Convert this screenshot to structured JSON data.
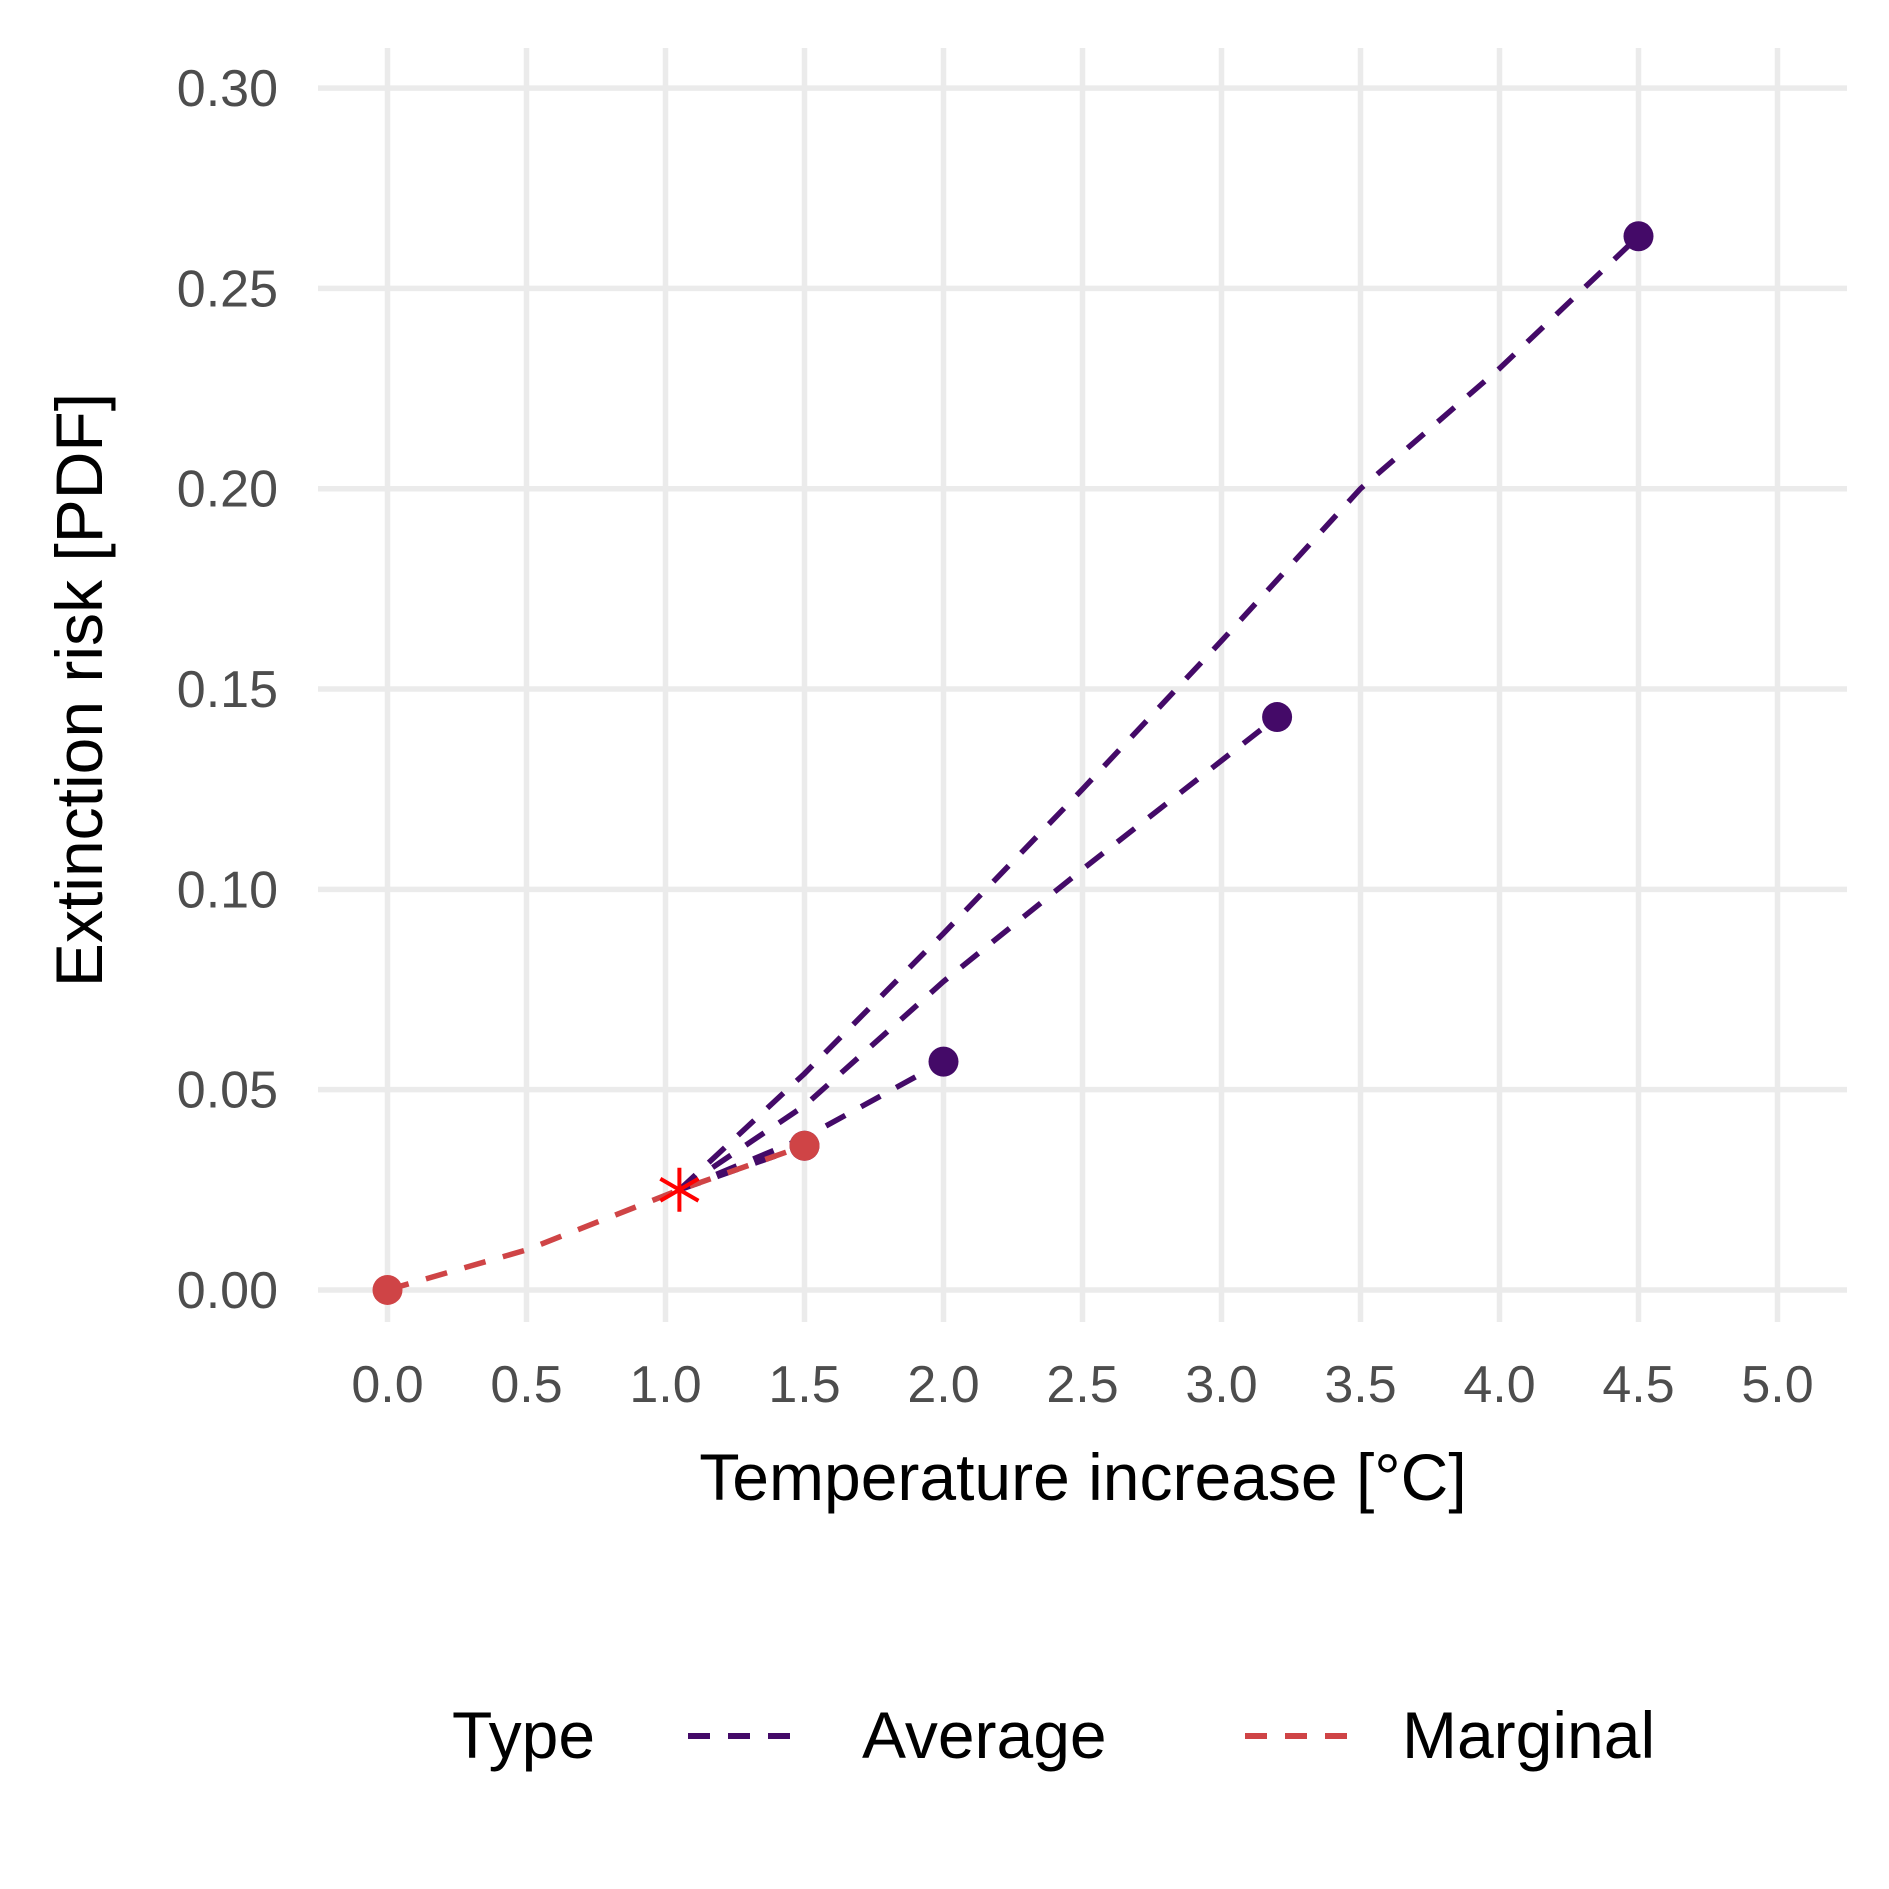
{
  "chart_data": {
    "type": "line",
    "xlabel": "Temperature increase [°C]",
    "ylabel": "Extinction risk [PDF]",
    "xlim": [
      -0.25,
      5.25
    ],
    "ylim": [
      -0.008,
      0.31
    ],
    "x_ticks": [
      {
        "value": 0.0,
        "label": "0.0"
      },
      {
        "value": 0.5,
        "label": "0.5"
      },
      {
        "value": 1.0,
        "label": "1.0"
      },
      {
        "value": 1.5,
        "label": "1.5"
      },
      {
        "value": 2.0,
        "label": "2.0"
      },
      {
        "value": 2.5,
        "label": "2.5"
      },
      {
        "value": 3.0,
        "label": "3.0"
      },
      {
        "value": 3.5,
        "label": "3.5"
      },
      {
        "value": 4.0,
        "label": "4.0"
      },
      {
        "value": 4.5,
        "label": "4.5"
      },
      {
        "value": 5.0,
        "label": "5.0"
      }
    ],
    "y_ticks": [
      {
        "value": 0.0,
        "label": "0.00"
      },
      {
        "value": 0.05,
        "label": "0.05"
      },
      {
        "value": 0.1,
        "label": "0.10"
      },
      {
        "value": 0.15,
        "label": "0.15"
      },
      {
        "value": 0.2,
        "label": "0.20"
      },
      {
        "value": 0.25,
        "label": "0.25"
      },
      {
        "value": 0.3,
        "label": "0.30"
      }
    ],
    "grid": true,
    "legend": {
      "title": "Type",
      "position": "bottom",
      "entries": [
        {
          "name": "Average",
          "color": "#440a68"
        },
        {
          "name": "Marginal",
          "color": "#cf4446"
        }
      ]
    },
    "current_point": {
      "x": 1.05,
      "y": 0.025,
      "color": "#ff0000"
    },
    "series": [
      {
        "name": "Average",
        "color": "#440a68",
        "segments": [
          {
            "x": [
              1.05,
              1.5
            ],
            "y": [
              0.025,
              0.036
            ],
            "end_point": true
          },
          {
            "x": [
              1.05,
              1.5,
              2.0
            ],
            "y": [
              0.025,
              0.038,
              0.057
            ],
            "end_point": true
          },
          {
            "x": [
              1.05,
              1.5,
              2.0,
              2.5,
              3.2
            ],
            "y": [
              0.025,
              0.046,
              0.077,
              0.105,
              0.143
            ],
            "end_point": true
          },
          {
            "x": [
              1.05,
              1.5,
              2.0,
              2.5,
              3.0,
              3.5,
              4.0,
              4.5
            ],
            "y": [
              0.025,
              0.054,
              0.089,
              0.125,
              0.162,
              0.2,
              0.23,
              0.263
            ],
            "end_point": true
          }
        ]
      },
      {
        "name": "Marginal",
        "color": "#cf4446",
        "segments": [
          {
            "x": [
              0.0,
              0.5,
              1.05,
              1.5
            ],
            "y": [
              0.0,
              0.01,
              0.025,
              0.036
            ],
            "start_point": true,
            "end_point": true
          }
        ]
      }
    ]
  }
}
